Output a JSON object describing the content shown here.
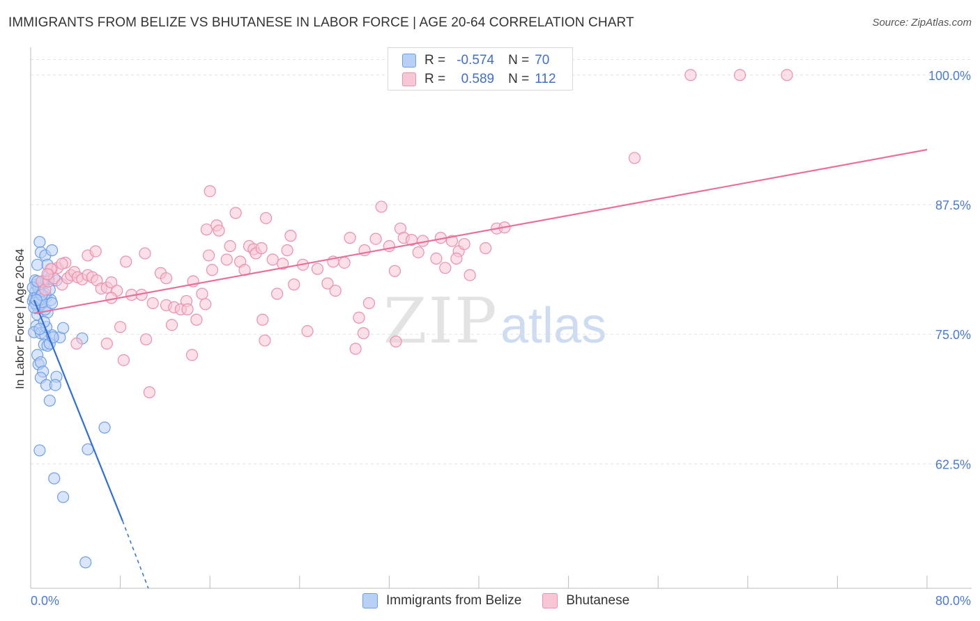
{
  "title": "IMMIGRANTS FROM BELIZE VS BHUTANESE IN LABOR FORCE | AGE 20-64 CORRELATION CHART",
  "source": "Source: ZipAtlas.com",
  "watermark": {
    "zip": "ZIP",
    "atlas": "atlas"
  },
  "legend": {
    "rows": [
      {
        "r_label": "R =",
        "r_value": "-0.574",
        "n_label": "N =",
        "n_value": "70",
        "color": "#6f9fe8",
        "fill": "#b9d0f5"
      },
      {
        "r_label": "R =",
        "r_value": "0.589",
        "n_label": "N =",
        "n_value": "112",
        "color": "#eb8fae",
        "fill": "#f8c7d6"
      }
    ]
  },
  "bottom_legend": [
    {
      "label": "Immigrants from Belize",
      "color": "#6f9fe8",
      "fill": "#b9d0f5"
    },
    {
      "label": "Bhutanese",
      "color": "#eb8fae",
      "fill": "#f8c7d6"
    }
  ],
  "chart_data": {
    "type": "scatter",
    "title": "IMMIGRANTS FROM BELIZE VS BHUTANESE IN LABOR FORCE | AGE 20-64 CORRELATION CHART",
    "xlabel": "",
    "ylabel": "In Labor Force | Age 20-64",
    "xlim": [
      0,
      80
    ],
    "ylim": [
      50.5,
      102
    ],
    "x_tick_labels": [
      {
        "value": 0,
        "label": "0.0%"
      },
      {
        "value": 80,
        "label": "80.0%"
      }
    ],
    "y_ticks": [
      {
        "value": 62.5,
        "label": "62.5%"
      },
      {
        "value": 75.0,
        "label": "75.0%"
      },
      {
        "value": 87.5,
        "label": "87.5%"
      },
      {
        "value": 100.0,
        "label": "100.0%"
      }
    ],
    "grid": true,
    "series": [
      {
        "name": "Immigrants from Belize",
        "color": "#6f9fe8",
        "fill": "#b9d0f5",
        "line_color": "#2f6fd6",
        "trend": {
          "x0": 0.3,
          "y0": 78.3,
          "x1": 8.2,
          "y1": 57.0,
          "dash_x1": 10.5,
          "dash_y1": 50.5
        },
        "points": [
          [
            0.2,
            78.2
          ],
          [
            0.3,
            78.5
          ],
          [
            0.5,
            77.8
          ],
          [
            0.4,
            79.1
          ],
          [
            0.6,
            78.7
          ],
          [
            0.8,
            78.4
          ],
          [
            0.5,
            79.8
          ],
          [
            0.9,
            80.0
          ],
          [
            1.2,
            80.1
          ],
          [
            1.6,
            80.3
          ],
          [
            0.7,
            77.5
          ],
          [
            1.0,
            77.9
          ],
          [
            1.4,
            78.6
          ],
          [
            1.8,
            78.3
          ],
          [
            0.9,
            79.6
          ],
          [
            1.1,
            79.2
          ],
          [
            1.3,
            78.9
          ],
          [
            0.6,
            76.9
          ],
          [
            1.5,
            77.1
          ],
          [
            1.3,
            77.4
          ],
          [
            0.8,
            83.9
          ],
          [
            0.9,
            82.9
          ],
          [
            1.3,
            82.6
          ],
          [
            1.9,
            83.1
          ],
          [
            0.6,
            81.7
          ],
          [
            1.5,
            81.7
          ],
          [
            2.3,
            80.2
          ],
          [
            1.1,
            80.0
          ],
          [
            0.4,
            80.2
          ],
          [
            0.7,
            79.4
          ],
          [
            0.5,
            75.8
          ],
          [
            0.3,
            75.2
          ],
          [
            0.9,
            75.1
          ],
          [
            1.3,
            74.9
          ],
          [
            1.9,
            74.9
          ],
          [
            1.4,
            75.7
          ],
          [
            1.2,
            74.0
          ],
          [
            1.5,
            73.9
          ],
          [
            1.7,
            74.1
          ],
          [
            2.6,
            74.7
          ],
          [
            2.9,
            75.6
          ],
          [
            4.6,
            74.6
          ],
          [
            0.6,
            73.0
          ],
          [
            0.7,
            72.1
          ],
          [
            0.9,
            72.3
          ],
          [
            1.1,
            71.4
          ],
          [
            0.9,
            70.8
          ],
          [
            2.3,
            70.9
          ],
          [
            1.4,
            70.1
          ],
          [
            2.2,
            70.1
          ],
          [
            1.7,
            68.6
          ],
          [
            6.6,
            66.0
          ],
          [
            0.8,
            63.8
          ],
          [
            5.1,
            63.9
          ],
          [
            2.1,
            61.1
          ],
          [
            2.9,
            59.3
          ],
          [
            4.9,
            53.0
          ],
          [
            1.0,
            78.1
          ],
          [
            0.4,
            78.0
          ],
          [
            1.7,
            79.3
          ],
          [
            0.2,
            79.5
          ],
          [
            0.6,
            80.1
          ],
          [
            1.2,
            76.2
          ],
          [
            2.0,
            74.7
          ],
          [
            0.8,
            75.5
          ],
          [
            1.0,
            78.8
          ],
          [
            0.3,
            77.6
          ],
          [
            0.5,
            78.3
          ],
          [
            1.9,
            78.0
          ],
          [
            1.6,
            80.7
          ]
        ]
      },
      {
        "name": "Bhutanese",
        "color": "#eb8fae",
        "fill": "#f8c7d6",
        "line_color": "#e8709a",
        "trend": {
          "x0": 0.3,
          "y0": 77.0,
          "x1": 80,
          "y1": 92.8
        },
        "points": [
          [
            1.0,
            80.1
          ],
          [
            1.3,
            79.3
          ],
          [
            1.6,
            80.1
          ],
          [
            1.9,
            81.3
          ],
          [
            2.1,
            80.4
          ],
          [
            2.4,
            81.4
          ],
          [
            2.8,
            79.8
          ],
          [
            3.1,
            81.9
          ],
          [
            3.3,
            80.4
          ],
          [
            3.6,
            80.7
          ],
          [
            3.9,
            81.0
          ],
          [
            4.2,
            80.5
          ],
          [
            4.6,
            80.3
          ],
          [
            5.1,
            80.7
          ],
          [
            5.5,
            80.5
          ],
          [
            5.9,
            80.2
          ],
          [
            6.3,
            79.4
          ],
          [
            6.8,
            79.5
          ],
          [
            7.2,
            80.0
          ],
          [
            2.8,
            81.8
          ],
          [
            1.8,
            81.3
          ],
          [
            1.5,
            80.8
          ],
          [
            5.1,
            82.6
          ],
          [
            5.8,
            83.0
          ],
          [
            8.5,
            82.0
          ],
          [
            10.2,
            82.8
          ],
          [
            7.7,
            79.2
          ],
          [
            7.2,
            78.5
          ],
          [
            9.0,
            78.8
          ],
          [
            9.9,
            78.8
          ],
          [
            10.9,
            78.0
          ],
          [
            11.6,
            80.9
          ],
          [
            12.1,
            80.4
          ],
          [
            12.1,
            77.8
          ],
          [
            12.8,
            77.6
          ],
          [
            12.6,
            75.9
          ],
          [
            13.4,
            77.4
          ],
          [
            13.9,
            78.2
          ],
          [
            14.0,
            77.4
          ],
          [
            14.5,
            80.1
          ],
          [
            14.4,
            73.0
          ],
          [
            14.8,
            76.4
          ],
          [
            15.3,
            78.9
          ],
          [
            15.6,
            77.9
          ],
          [
            15.7,
            85.1
          ],
          [
            15.9,
            82.6
          ],
          [
            16.2,
            81.2
          ],
          [
            16.6,
            85.5
          ],
          [
            16.0,
            88.8
          ],
          [
            16.8,
            85.0
          ],
          [
            17.5,
            82.2
          ],
          [
            17.8,
            83.5
          ],
          [
            18.3,
            86.7
          ],
          [
            18.7,
            82.0
          ],
          [
            19.1,
            81.2
          ],
          [
            19.5,
            83.5
          ],
          [
            19.9,
            83.2
          ],
          [
            20.1,
            82.8
          ],
          [
            20.7,
            76.4
          ],
          [
            20.9,
            74.4
          ],
          [
            20.6,
            83.3
          ],
          [
            21.0,
            86.2
          ],
          [
            21.6,
            82.2
          ],
          [
            22.0,
            78.9
          ],
          [
            22.5,
            81.8
          ],
          [
            22.9,
            83.1
          ],
          [
            23.2,
            84.5
          ],
          [
            23.5,
            79.8
          ],
          [
            24.3,
            81.7
          ],
          [
            24.7,
            75.3
          ],
          [
            25.6,
            81.3
          ],
          [
            26.5,
            79.9
          ],
          [
            27.0,
            82.0
          ],
          [
            27.2,
            79.2
          ],
          [
            28.0,
            81.9
          ],
          [
            28.5,
            84.3
          ],
          [
            29.0,
            73.6
          ],
          [
            29.3,
            76.6
          ],
          [
            29.7,
            75.1
          ],
          [
            29.8,
            83.1
          ],
          [
            30.2,
            78.0
          ],
          [
            30.8,
            84.2
          ],
          [
            31.3,
            87.3
          ],
          [
            32.0,
            83.5
          ],
          [
            32.6,
            74.3
          ],
          [
            32.5,
            81.1
          ],
          [
            33.0,
            85.2
          ],
          [
            33.3,
            84.3
          ],
          [
            34.0,
            84.1
          ],
          [
            34.6,
            82.9
          ],
          [
            35.0,
            84.0
          ],
          [
            36.2,
            82.3
          ],
          [
            36.6,
            84.3
          ],
          [
            37.0,
            81.4
          ],
          [
            37.6,
            84.0
          ],
          [
            38.2,
            83.0
          ],
          [
            38.7,
            83.7
          ],
          [
            39.2,
            80.7
          ],
          [
            38.0,
            82.3
          ],
          [
            40.6,
            83.3
          ],
          [
            41.6,
            85.2
          ],
          [
            42.3,
            85.3
          ],
          [
            53.9,
            92.0
          ],
          [
            58.9,
            100.0
          ],
          [
            63.3,
            100.0
          ],
          [
            67.5,
            100.0
          ],
          [
            8.3,
            72.5
          ],
          [
            10.6,
            69.4
          ],
          [
            8.0,
            75.7
          ],
          [
            6.8,
            74.1
          ],
          [
            4.1,
            74.1
          ],
          [
            10.3,
            74.5
          ]
        ]
      }
    ]
  }
}
